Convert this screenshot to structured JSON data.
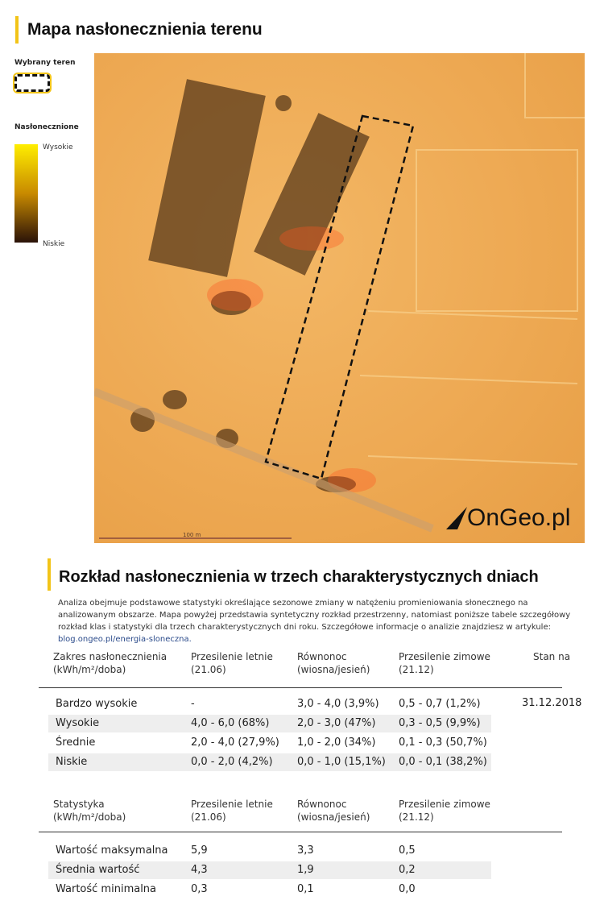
{
  "title": "Mapa nasłonecznienia terenu",
  "legend": {
    "selected_label": "Wybrany teren",
    "sun_label": "Nasłonecznione",
    "high": "Wysokie",
    "low": "Niskie",
    "gradient_colors": [
      "#ffee00",
      "#c88a00",
      "#2a1208"
    ]
  },
  "map": {
    "scale_label": "100 m",
    "logo": "OnGeo.pl",
    "selection_color": "#111111"
  },
  "section": {
    "title": "Rozkład nasłonecznienia w trzech charakterystycznych dniach",
    "desc": "Analiza obejmuje podstawowe statystyki określające sezonowe zmiany w natężeniu promieniowania słonecznego na analizowanym obszarze. Mapa powyżej przedstawia syntetyczny rozkład przestrzenny, natomiast poniższe tabele szczegółowy rozkład klas i statystyki dla trzech charakterystycznych dni roku. Szczegółowe informacje o analizie znajdziesz w artykule: ",
    "link": "blog.ongeo.pl/energia-sloneczna."
  },
  "table1": {
    "headers": [
      "Zakres nasłonecznienia\n(kWh/m²/doba)",
      "Przesilenie letnie\n(21.06)",
      "Równonoc\n(wiosna/jesień)",
      "Przesilenie zimowe\n(21.12)",
      "Stan na"
    ],
    "date": "31.12.2018",
    "rows": [
      [
        "Bardzo wysokie",
        "-",
        "3,0 - 4,0 (3,9%)",
        "0,5 - 0,7 (1,2%)"
      ],
      [
        "Wysokie",
        "4,0 - 6,0 (68%)",
        "2,0 - 3,0 (47%)",
        "0,3 - 0,5 (9,9%)"
      ],
      [
        "Średnie",
        "2,0 - 4,0 (27,9%)",
        "1,0 - 2,0 (34%)",
        "0,1 - 0,3 (50,7%)"
      ],
      [
        "Niskie",
        "0,0 - 2,0 (4,2%)",
        "0,0 - 1,0 (15,1%)",
        "0,0 - 0,1 (38,2%)"
      ]
    ]
  },
  "table2": {
    "headers": [
      "Statystyka\n(kWh/m²/doba)",
      "Przesilenie letnie\n(21.06)",
      "Równonoc\n(wiosna/jesień)",
      "Przesilenie zimowe\n(21.12)"
    ],
    "rows": [
      [
        "Wartość maksymalna",
        "5,9",
        "3,3",
        "0,5"
      ],
      [
        "Średnia wartość",
        "4,3",
        "1,9",
        "0,2"
      ],
      [
        "Wartość minimalna",
        "0,3",
        "0,1",
        "0,0"
      ]
    ]
  }
}
